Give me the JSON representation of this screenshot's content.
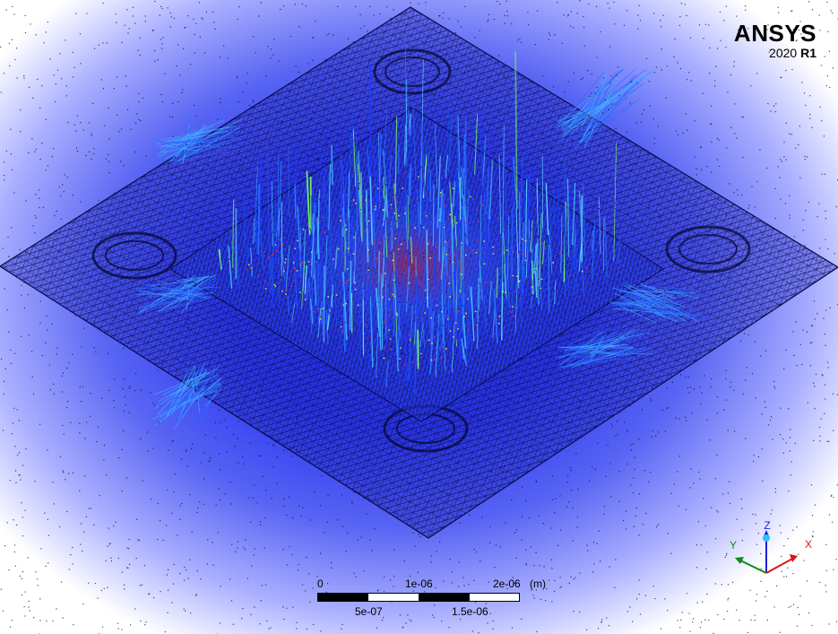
{
  "logo": {
    "name": "ANSYS",
    "year": "2020",
    "release": "R1"
  },
  "scale_bar": {
    "top_labels": [
      "0",
      "1e-06",
      "2e-06"
    ],
    "unit": "(m)",
    "bottom_labels": [
      "5e-07",
      "1.5e-06"
    ]
  },
  "triad": {
    "axes": [
      {
        "label": "Z",
        "color": "#1a20d8"
      },
      {
        "label": "Y",
        "color": "#0e8a1a"
      },
      {
        "label": "X",
        "color": "#d81818"
      }
    ]
  },
  "colors": {
    "mesh": "#0a0a4a",
    "background_center": "#1f2ee8",
    "streak_light": "#3fb8ff",
    "streak_accent": "#7cff5a"
  }
}
